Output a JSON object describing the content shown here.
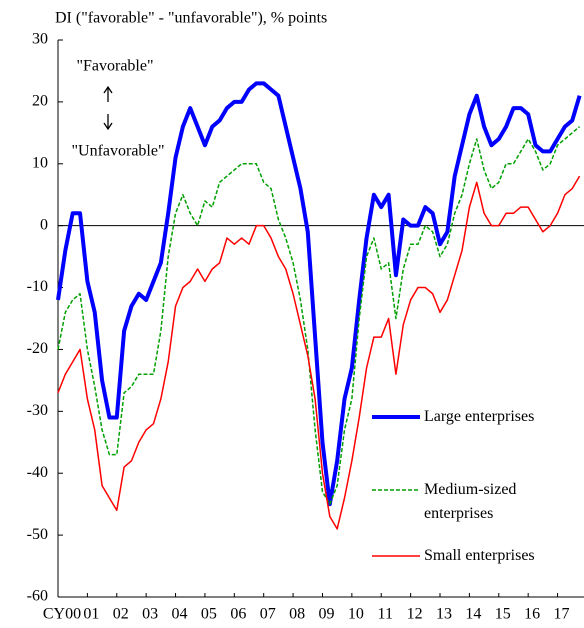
{
  "chart_data": {
    "type": "line",
    "title": "DI (\"favorable\" - \"unfavorable\"), % points",
    "annotations": [
      "\"Favorable\"",
      "\"Unfavorable\""
    ],
    "x": [
      2000,
      2000.25,
      2000.5,
      2000.75,
      2001,
      2001.25,
      2001.5,
      2001.75,
      2002,
      2002.25,
      2002.5,
      2002.75,
      2003,
      2003.25,
      2003.5,
      2003.75,
      2004,
      2004.25,
      2004.5,
      2004.75,
      2005,
      2005.25,
      2005.5,
      2005.75,
      2006,
      2006.25,
      2006.5,
      2006.75,
      2007,
      2007.25,
      2007.5,
      2007.75,
      2008,
      2008.25,
      2008.5,
      2008.75,
      2009,
      2009.25,
      2009.5,
      2009.75,
      2010,
      2010.25,
      2010.5,
      2010.75,
      2011,
      2011.25,
      2011.5,
      2011.75,
      2012,
      2012.25,
      2012.5,
      2012.75,
      2013,
      2013.25,
      2013.5,
      2013.75,
      2014,
      2014.25,
      2014.5,
      2014.75,
      2015,
      2015.25,
      2015.5,
      2015.75,
      2016,
      2016.25,
      2016.5,
      2016.75,
      2017,
      2017.25,
      2017.5,
      2017.75
    ],
    "series": [
      {
        "name": "Large enterprises",
        "color": "#0000ff",
        "values": [
          -12,
          -4,
          2,
          2,
          -9,
          -14,
          -25,
          -31,
          -31,
          -17,
          -13,
          -11,
          -12,
          -9,
          -6,
          2,
          11,
          16,
          19,
          16,
          13,
          16,
          17,
          19,
          20,
          20,
          22,
          23,
          23,
          22,
          21,
          16,
          11,
          6,
          -1,
          -18,
          -35,
          -45,
          -38,
          -28,
          -23,
          -12,
          -2,
          5,
          3,
          5,
          -8,
          1,
          0,
          0,
          3,
          2,
          -3,
          -1,
          8,
          13,
          18,
          21,
          16,
          13,
          14,
          16,
          19,
          19,
          18,
          13,
          12,
          12,
          14,
          16,
          17,
          21
        ]
      },
      {
        "name": "Medium-sized enterprises",
        "color": "#00a000",
        "dashed": true,
        "values": [
          -20,
          -14,
          -12,
          -11,
          -20,
          -26,
          -33,
          -37,
          -37,
          -27,
          -26,
          -24,
          -24,
          -24,
          -17,
          -5,
          2,
          5,
          2,
          0,
          4,
          3,
          7,
          8,
          9,
          10,
          10,
          10,
          7,
          6,
          1,
          -2,
          -6,
          -12,
          -20,
          -33,
          -43,
          -45,
          -42,
          -33,
          -28,
          -15,
          -5,
          -2,
          -7,
          -6,
          -15,
          -7,
          -3,
          -3,
          0,
          -1,
          -5,
          -3,
          2,
          5,
          10,
          14,
          9,
          6,
          7,
          10,
          10,
          12,
          14,
          12,
          9,
          10,
          13,
          14,
          15,
          16
        ]
      },
      {
        "name": "Small enterprises",
        "color": "#ff0000",
        "values": [
          -27,
          -24,
          -22,
          -20,
          -28,
          -33,
          -42,
          -44,
          -46,
          -39,
          -38,
          -35,
          -33,
          -32,
          -28,
          -22,
          -13,
          -10,
          -9,
          -7,
          -9,
          -7,
          -6,
          -2,
          -3,
          -2,
          -3,
          0,
          0,
          -2,
          -5,
          -7,
          -11,
          -16,
          -21,
          -28,
          -40,
          -47,
          -49,
          -44,
          -38,
          -31,
          -23,
          -18,
          -18,
          -15,
          -24,
          -16,
          -12,
          -10,
          -10,
          -11,
          -14,
          -12,
          -8,
          -4,
          3,
          7,
          2,
          0,
          0,
          2,
          2,
          3,
          3,
          1,
          -1,
          0,
          2,
          5,
          6,
          8
        ]
      }
    ],
    "xlim": [
      2000,
      2017.9
    ],
    "xticks": [
      {
        "value": 2000,
        "label": "CY00"
      },
      {
        "value": 2001,
        "label": "01"
      },
      {
        "value": 2002,
        "label": "02"
      },
      {
        "value": 2003,
        "label": "03"
      },
      {
        "value": 2004,
        "label": "04"
      },
      {
        "value": 2005,
        "label": "05"
      },
      {
        "value": 2006,
        "label": "06"
      },
      {
        "value": 2007,
        "label": "07"
      },
      {
        "value": 2008,
        "label": "08"
      },
      {
        "value": 2009,
        "label": "09"
      },
      {
        "value": 2010,
        "label": "10"
      },
      {
        "value": 2011,
        "label": "11"
      },
      {
        "value": 2012,
        "label": "12"
      },
      {
        "value": 2013,
        "label": "13"
      },
      {
        "value": 2014,
        "label": "14"
      },
      {
        "value": 2015,
        "label": "15"
      },
      {
        "value": 2016,
        "label": "16"
      },
      {
        "value": 2017,
        "label": "17"
      }
    ],
    "ylim": [
      -60,
      30
    ],
    "yticks": [
      -60,
      -50,
      -40,
      -30,
      -20,
      -10,
      0,
      10,
      20,
      30
    ]
  }
}
